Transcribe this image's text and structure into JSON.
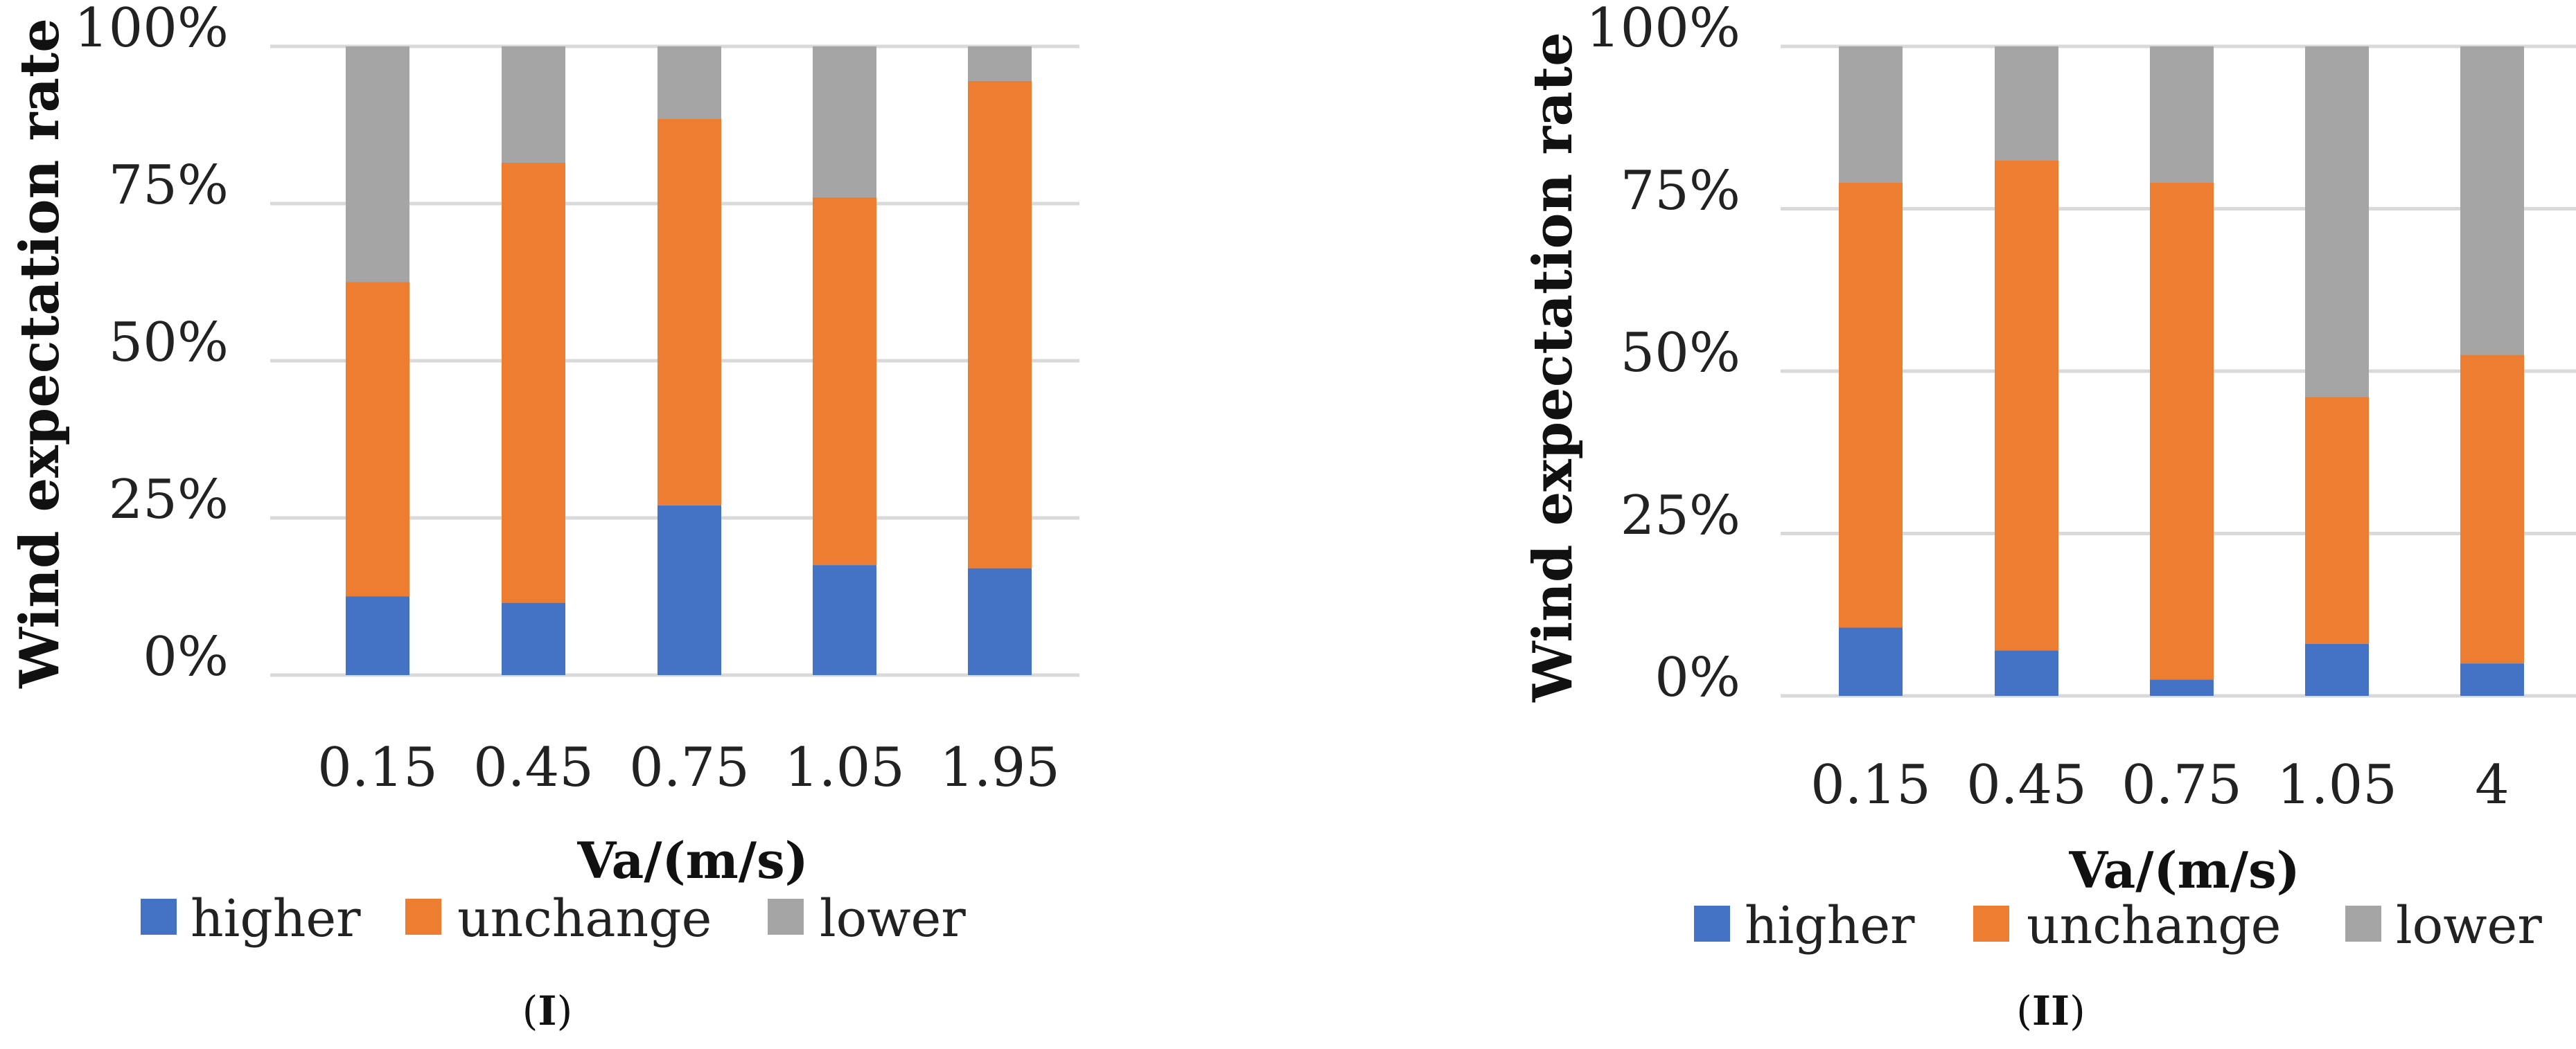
{
  "chart_data": [
    {
      "type": "bar",
      "stacked": "percent",
      "caption": "I",
      "xlabel": "Va/(m/s)",
      "ylabel": "Wind expectation rate",
      "categories": [
        "0.15",
        "0.45",
        "0.75",
        "1.05",
        "1.95"
      ],
      "y_ticks": [
        "0%",
        "25%",
        "50%",
        "75%",
        "100%"
      ],
      "ylim": [
        0,
        100
      ],
      "series": [
        {
          "name": "higher",
          "color": "#4472C4",
          "values": [
            12.5,
            11.5,
            27,
            17.5,
            17
          ]
        },
        {
          "name": "unchange",
          "color": "#ED7D31",
          "values": [
            50,
            70,
            61.5,
            58.5,
            77.5
          ]
        },
        {
          "name": "lower",
          "color": "#A5A5A5",
          "values": [
            37.5,
            18.5,
            11.5,
            24,
            5.5
          ]
        }
      ],
      "legend": "bottom"
    },
    {
      "type": "bar",
      "stacked": "percent",
      "caption": "II",
      "xlabel": "Va/(m/s)",
      "ylabel": "Wind expectation rate",
      "categories": [
        "0.15",
        "0.45",
        "0.75",
        "1.05",
        "4"
      ],
      "y_ticks": [
        "0%",
        "25%",
        "50%",
        "75%",
        "100%"
      ],
      "ylim": [
        0,
        100
      ],
      "series": [
        {
          "name": "higher",
          "color": "#4472C4",
          "values": [
            10.5,
            7,
            2.5,
            8,
            5
          ]
        },
        {
          "name": "unchange",
          "color": "#ED7D31",
          "values": [
            68.5,
            75.5,
            76.5,
            38,
            47.5
          ]
        },
        {
          "name": "lower",
          "color": "#A5A5A5",
          "values": [
            21,
            17.5,
            21,
            54,
            47.5
          ]
        }
      ],
      "legend": "bottom"
    }
  ]
}
